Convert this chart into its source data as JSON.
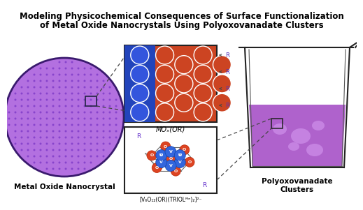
{
  "title_line1": "Modeling Physicochemical Consequences of Surface Functionalization",
  "title_line2": "of Metal Oxide Nanocrystals Using Polyoxovanadate Clusters",
  "title_fontsize": 8.5,
  "title_fontweight": "bold",
  "bg_color": "#ffffff",
  "label_metal_oxide": "Metal Oxide Nanocrystal",
  "label_polyoxo": "Polyoxovanadate\nClusters",
  "label_mox": "MOₓ(OR)",
  "label_cluster": "[V₆O₁₂(OR)(TRIOLᴹᵉ)₂]²⁻",
  "ellipse_color_light": "#c07ae0",
  "ellipse_color_dark": "#7733bb",
  "ellipse_edge": "#333366",
  "dot_color": "#9955cc",
  "red_sphere": "#cc3300",
  "blue_sphere": "#2244cc",
  "label_fontsize": 7.5,
  "label_fontweight": "bold",
  "sub_label_fontsize": 6.5
}
